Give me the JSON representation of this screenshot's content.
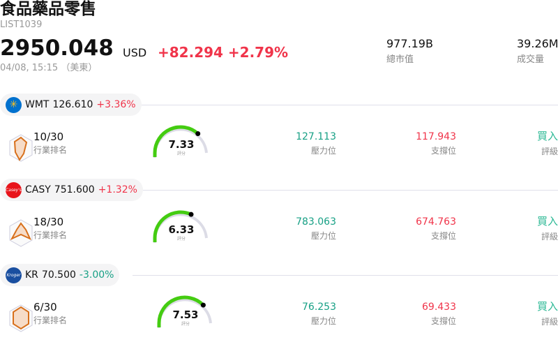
{
  "header": {
    "title": "食品藥品零售",
    "code": "LIST1039",
    "price": "2950.048",
    "currency": "USD",
    "change": "+82.294",
    "change_pct": "+2.79%",
    "time": "04/08, 15:15 （美東）",
    "market_cap": "977.19B",
    "market_cap_label": "總市值",
    "volume": "39.26M",
    "volume_label": "成交量"
  },
  "colors": {
    "up": "#f0344a",
    "down": "#17a085",
    "gauge": "#44cc11",
    "rating": "#2bb894"
  },
  "labels": {
    "rank": "行業排名",
    "resistance": "壓力位",
    "support": "支撐位",
    "rating": "評級",
    "score": "評分"
  },
  "stocks": [
    {
      "ticker": "WMT",
      "price": "126.610",
      "change_pct": "+3.36%",
      "direction": "up",
      "logo": "walmart-spark-icon",
      "logo_color": "#0071ce",
      "rank": "10/30",
      "score": "7.33",
      "score_value": 7.33,
      "resistance": "127.113",
      "support": "117.943",
      "rating": "買入"
    },
    {
      "ticker": "CASY",
      "price": "751.600",
      "change_pct": "+1.32%",
      "direction": "up",
      "logo": "caseys-logo-icon",
      "logo_text": "Casey's",
      "logo_color": "#e8141b",
      "rank": "18/30",
      "score": "6.33",
      "score_value": 6.33,
      "resistance": "783.063",
      "support": "674.763",
      "rating": "買入"
    },
    {
      "ticker": "KR",
      "price": "70.500",
      "change_pct": "-3.00%",
      "direction": "down",
      "logo": "kroger-logo-icon",
      "logo_text": "Kroger",
      "logo_color": "#1a4fa0",
      "rank": "6/30",
      "score": "7.53",
      "score_value": 7.53,
      "resistance": "76.253",
      "support": "69.433",
      "rating": "買入"
    }
  ]
}
